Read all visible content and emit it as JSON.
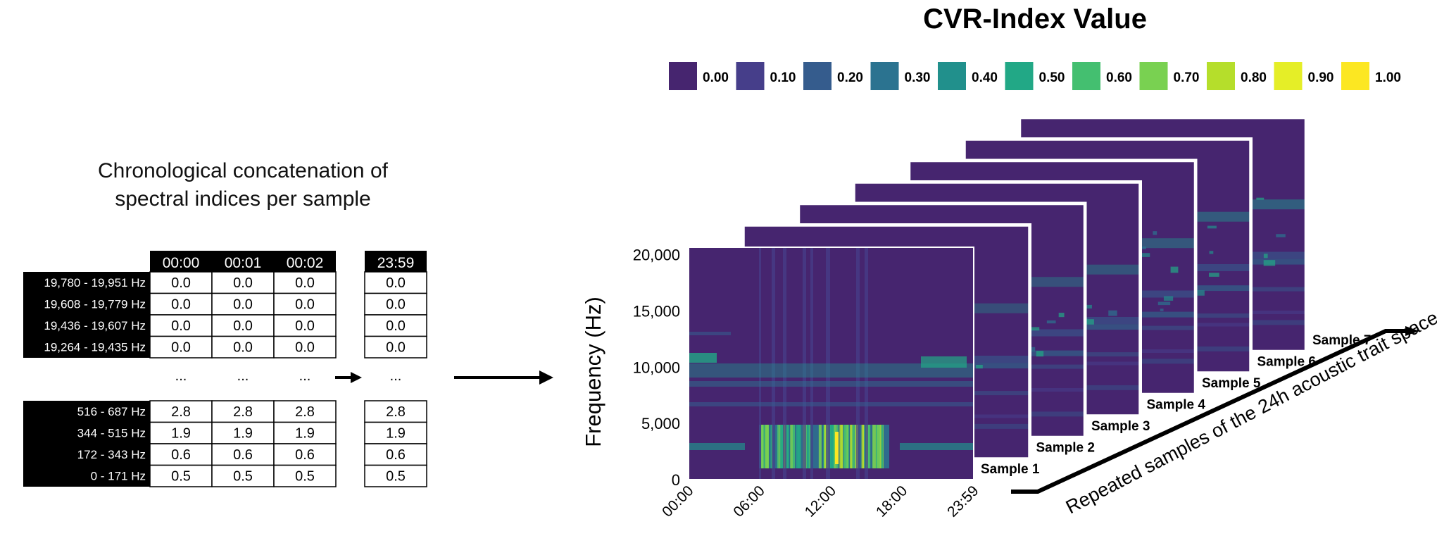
{
  "left_panel": {
    "title_line1": "Chronological concatenation of",
    "title_line2": "spectral indices per sample",
    "time_headers": [
      "00:00",
      "00:01",
      "00:02"
    ],
    "last_time_header": "23:59",
    "ellipsis": "...",
    "top_rows": [
      {
        "label": "19,780 - 19,951 Hz",
        "values": [
          "0.0",
          "0.0",
          "0.0"
        ],
        "last": "0.0"
      },
      {
        "label": "19,608 - 19,779 Hz",
        "values": [
          "0.0",
          "0.0",
          "0.0"
        ],
        "last": "0.0"
      },
      {
        "label": "19,436 - 19,607 Hz",
        "values": [
          "0.0",
          "0.0",
          "0.0"
        ],
        "last": "0.0"
      },
      {
        "label": "19,264 - 19,435 Hz",
        "values": [
          "0.0",
          "0.0",
          "0.0"
        ],
        "last": "0.0"
      }
    ],
    "bottom_rows": [
      {
        "label": "516 - 687 Hz",
        "values": [
          "2.8",
          "2.8",
          "2.8"
        ],
        "last": "2.8"
      },
      {
        "label": "344 - 515 Hz",
        "values": [
          "1.9",
          "1.9",
          "1.9"
        ],
        "last": "1.9"
      },
      {
        "label": "172 - 343 Hz",
        "values": [
          "0.6",
          "0.6",
          "0.6"
        ],
        "last": "0.6"
      },
      {
        "label": "0 - 171 Hz",
        "values": [
          "0.5",
          "0.5",
          "0.5"
        ],
        "last": "0.5"
      }
    ]
  },
  "legend": {
    "title": "CVR-Index Value",
    "entries": [
      {
        "label": "0.00",
        "color": "#46256f"
      },
      {
        "label": "0.10",
        "color": "#463e8a"
      },
      {
        "label": "0.20",
        "color": "#355c8d"
      },
      {
        "label": "0.30",
        "color": "#2b7390"
      },
      {
        "label": "0.40",
        "color": "#21908c"
      },
      {
        "label": "0.50",
        "color": "#22a886"
      },
      {
        "label": "0.60",
        "color": "#44bf70"
      },
      {
        "label": "0.70",
        "color": "#79d151"
      },
      {
        "label": "0.80",
        "color": "#b5de2b"
      },
      {
        "label": "0.90",
        "color": "#e5ee27"
      },
      {
        "label": "1.00",
        "color": "#fce722"
      }
    ]
  },
  "chart_data": {
    "type": "heatmap",
    "title": "CVR-Index Value",
    "ylabel": "Frequency (Hz)",
    "xlabel": "",
    "x_ticks": [
      "00:00",
      "06:00",
      "12:00",
      "18:00",
      "23:59"
    ],
    "y_ticks": [
      "0",
      "5,000",
      "10,000",
      "15,000",
      "20,000"
    ],
    "ylim": [
      0,
      20672
    ],
    "samples": [
      "Sample 1",
      "Sample 2",
      "Sample 3",
      "Sample 4",
      "Sample 5",
      "Sample 6",
      "Sample 7"
    ],
    "colorscale_min": 0.0,
    "colorscale_max": 1.0
  },
  "axis_caption": "Repeated samples of the 24h acoustic trait space"
}
